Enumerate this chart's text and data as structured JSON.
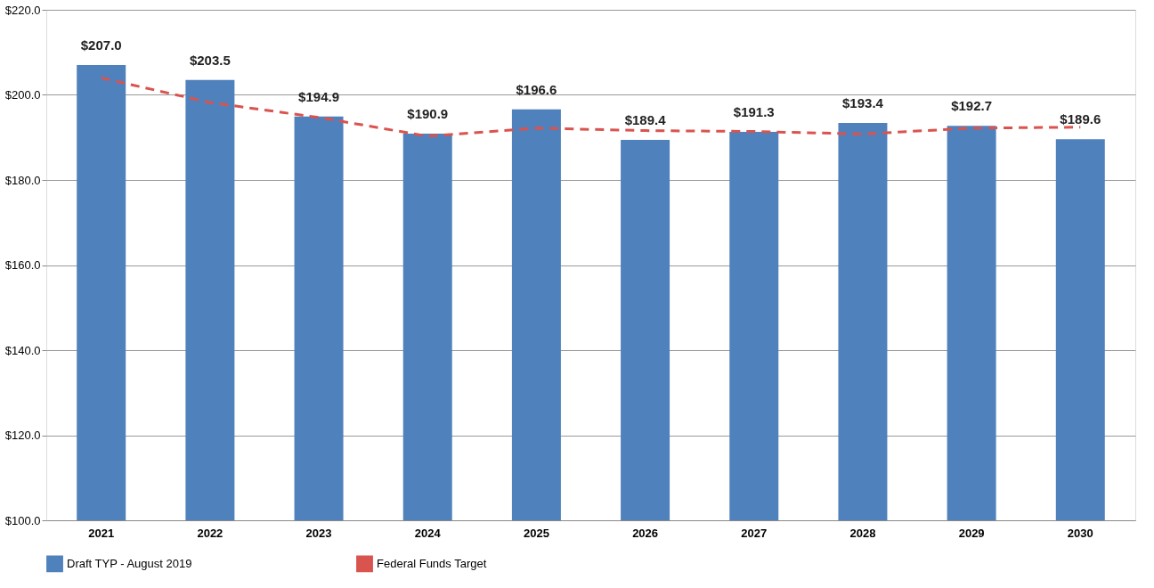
{
  "chart_data": {
    "type": "bar",
    "categories": [
      "2021",
      "2022",
      "2023",
      "2024",
      "2025",
      "2026",
      "2027",
      "2028",
      "2029",
      "2030"
    ],
    "series": [
      {
        "name": "Draft TYP - August 2019",
        "color": "#4f81bd",
        "values": [
          207.0,
          203.5,
          194.9,
          190.9,
          196.6,
          189.4,
          191.3,
          193.4,
          192.7,
          189.6
        ],
        "value_labels": [
          "$207.0",
          "$203.5",
          "$194.9",
          "$190.9",
          "$196.6",
          "$189.4",
          "$191.3",
          "$193.4",
          "$192.7",
          "$189.6"
        ]
      },
      {
        "name": "Federal Funds Target",
        "type": "line",
        "color": "#d9534f",
        "line_style": "dashed",
        "marker": "none",
        "values": [
          204.0,
          198.2,
          194.7,
          190.3,
          192.2,
          191.6,
          191.4,
          190.8,
          192.2,
          192.4
        ]
      }
    ],
    "ylim": [
      100,
      220
    ],
    "yticks": [
      {
        "value": 100,
        "label": "$100.0"
      },
      {
        "value": 120,
        "label": "$120.0"
      },
      {
        "value": 140,
        "label": "$140.0"
      },
      {
        "value": 160,
        "label": "$160.0"
      },
      {
        "value": 180,
        "label": "$180.0"
      },
      {
        "value": 200,
        "label": "$200.0"
      },
      {
        "value": 220,
        "label": "$220.0"
      }
    ],
    "grid": "y",
    "legend": "bottom"
  }
}
